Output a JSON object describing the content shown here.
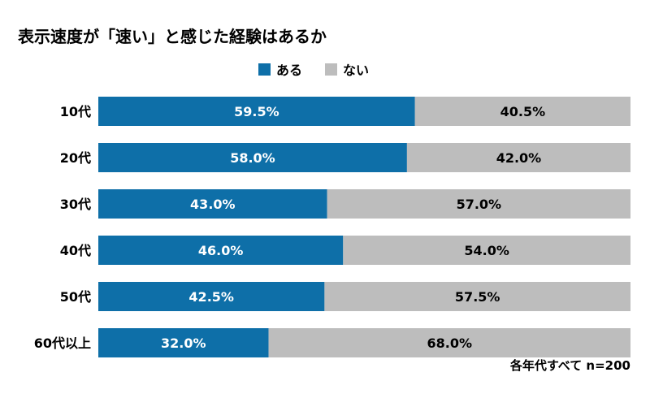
{
  "chart_data": {
    "type": "bar",
    "stacked": true,
    "orientation": "horizontal",
    "percent_stacked": true,
    "title": "表示速度が「速い」と感じた経験はあるか",
    "categories": [
      "10代",
      "20代",
      "30代",
      "40代",
      "50代",
      "60代以上"
    ],
    "series": [
      {
        "name": "ある",
        "values": [
          59.5,
          58.0,
          43.0,
          46.0,
          42.5,
          32.0
        ],
        "color": "#0e6fa8",
        "label_color": "#ffffff"
      },
      {
        "name": "ない",
        "values": [
          40.5,
          42.0,
          57.0,
          54.0,
          57.5,
          68.0
        ],
        "color": "#bdbdbd",
        "label_color": "#000000"
      }
    ],
    "value_suffix": "%",
    "value_decimals": 1,
    "xlim": [
      0,
      100
    ],
    "legend": {
      "placement": "top-center"
    },
    "grid": false,
    "footnote": "各年代すべて n=200"
  }
}
